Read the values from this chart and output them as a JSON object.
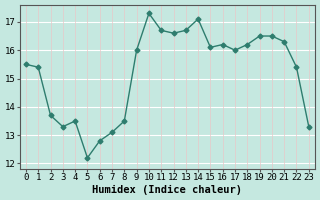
{
  "x": [
    0,
    1,
    2,
    3,
    4,
    5,
    6,
    7,
    8,
    9,
    10,
    11,
    12,
    13,
    14,
    15,
    16,
    17,
    18,
    19,
    20,
    21,
    22,
    23
  ],
  "y": [
    15.5,
    15.4,
    13.7,
    13.3,
    13.5,
    12.2,
    12.8,
    13.1,
    13.5,
    16.0,
    17.3,
    16.7,
    16.6,
    16.7,
    17.1,
    16.1,
    16.2,
    16.0,
    16.2,
    16.5,
    16.5,
    16.3,
    15.4,
    13.3
  ],
  "xlabel": "Humidex (Indice chaleur)",
  "ylim": [
    11.8,
    17.6
  ],
  "xlim": [
    -0.5,
    23.5
  ],
  "yticks": [
    12,
    13,
    14,
    15,
    16,
    17
  ],
  "xticks": [
    0,
    1,
    2,
    3,
    4,
    5,
    6,
    7,
    8,
    9,
    10,
    11,
    12,
    13,
    14,
    15,
    16,
    17,
    18,
    19,
    20,
    21,
    22,
    23
  ],
  "line_color": "#2e7d6e",
  "marker": "D",
  "marker_size": 2.5,
  "bg_color": "#c5e8e0",
  "grid_color_h": "#ffffff",
  "grid_color_v": "#e8c8c8",
  "xlabel_fontsize": 7.5,
  "tick_fontsize": 6.5,
  "fig_width": 3.2,
  "fig_height": 2.0,
  "dpi": 100
}
